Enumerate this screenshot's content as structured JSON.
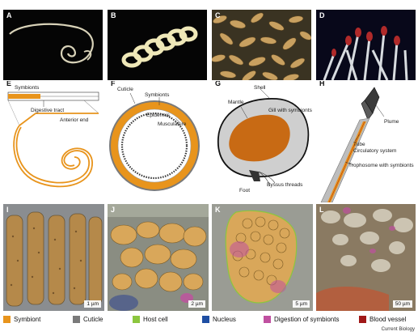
{
  "panels": {
    "A": {
      "label": "A"
    },
    "B": {
      "label": "B"
    },
    "C": {
      "label": "C"
    },
    "D": {
      "label": "D"
    },
    "E": {
      "label": "E",
      "symbionts": "Symbionts",
      "digestive_tract": "Digestive tract",
      "anterior_end": "Anterior end"
    },
    "F": {
      "label": "F",
      "cuticle": "Cuticle",
      "symbionts": "Symbionts",
      "epidermis": "Epidermis",
      "musculature": "Musculature"
    },
    "G": {
      "label": "G",
      "shell": "Shell",
      "mantle": "Mantle",
      "gill": "Gill with symbionts",
      "byssus": "Byssus threads",
      "foot": "Foot"
    },
    "H": {
      "label": "H",
      "plume": "Plume",
      "tube": "Tube",
      "circulatory": "Circulatory system",
      "trophosome": "Trophosome with symbionts"
    },
    "I": {
      "label": "I",
      "scale": "1 µm"
    },
    "J": {
      "label": "J",
      "scale": "2 µm"
    },
    "K": {
      "label": "K",
      "scale": "5 µm"
    },
    "L": {
      "label": "L",
      "scale": "50 µm"
    }
  },
  "legend": [
    {
      "label": "Symbiont",
      "color": "#e8941c"
    },
    {
      "label": "Cuticle",
      "color": "#7a7a7a"
    },
    {
      "label": "Host cell",
      "color": "#8cc63e"
    },
    {
      "label": "Nucleus",
      "color": "#1f4fa3"
    },
    {
      "label": "Digestion of symbionts",
      "color": "#c050a0"
    },
    {
      "label": "Blood vessel",
      "color": "#a01818"
    }
  ],
  "credit": "Current Biology",
  "colors": {
    "orange": "#e8941c",
    "gray": "#7a7a7a",
    "dark_panel": "#0a0a0a"
  }
}
